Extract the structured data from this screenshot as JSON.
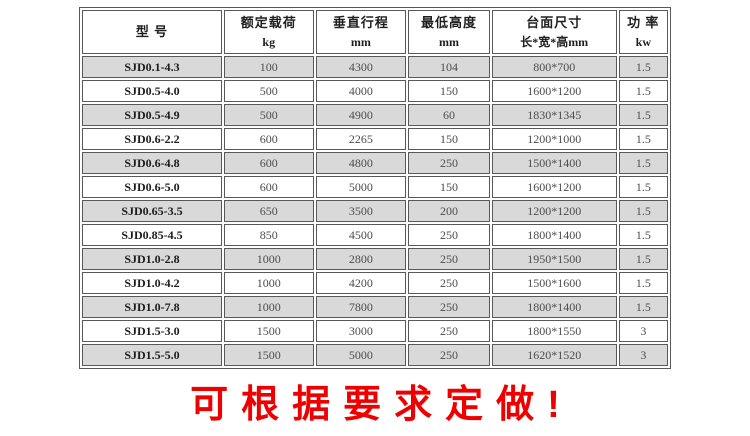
{
  "table": {
    "columns": [
      {
        "title": "型 号",
        "unit": ""
      },
      {
        "title": "额定载荷",
        "unit": "kg"
      },
      {
        "title": "垂直行程",
        "unit": "mm"
      },
      {
        "title": "最低高度",
        "unit": "mm"
      },
      {
        "title": "台面尺寸",
        "unit": "长*宽*高mm"
      },
      {
        "title": "功 率",
        "unit": "kw"
      }
    ],
    "rows": [
      [
        "SJD0.1-4.3",
        "100",
        "4300",
        "104",
        "800*700",
        "1.5"
      ],
      [
        "SJD0.5-4.0",
        "500",
        "4000",
        "150",
        "1600*1200",
        "1.5"
      ],
      [
        "SJD0.5-4.9",
        "500",
        "4900",
        "60",
        "1830*1345",
        "1.5"
      ],
      [
        "SJD0.6-2.2",
        "600",
        "2265",
        "150",
        "1200*1000",
        "1.5"
      ],
      [
        "SJD0.6-4.8",
        "600",
        "4800",
        "250",
        "1500*1400",
        "1.5"
      ],
      [
        "SJD0.6-5.0",
        "600",
        "5000",
        "150",
        "1600*1200",
        "1.5"
      ],
      [
        "SJD0.65-3.5",
        "650",
        "3500",
        "200",
        "1200*1200",
        "1.5"
      ],
      [
        "SJD0.85-4.5",
        "850",
        "4500",
        "250",
        "1800*1400",
        "1.5"
      ],
      [
        "SJD1.0-2.8",
        "1000",
        "2800",
        "250",
        "1950*1500",
        "1.5"
      ],
      [
        "SJD1.0-4.2",
        "1000",
        "4200",
        "250",
        "1500*1600",
        "1.5"
      ],
      [
        "SJD1.0-7.8",
        "1000",
        "7800",
        "250",
        "1800*1400",
        "1.5"
      ],
      [
        "SJD1.5-3.0",
        "1500",
        "3000",
        "250",
        "1800*1550",
        "3"
      ],
      [
        "SJD1.5-5.0",
        "1500",
        "5000",
        "250",
        "1620*1520",
        "3"
      ]
    ],
    "stripe_color": "#d9d9d9",
    "border_color": "#595959"
  },
  "footer": {
    "text": "可根据要求定做!",
    "color": "#ee0000"
  }
}
